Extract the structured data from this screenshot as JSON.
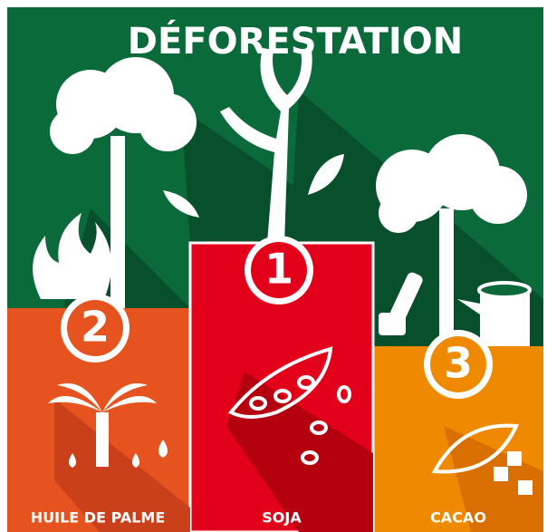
{
  "title": "DÉFORESTATION",
  "podium": [
    {
      "rank": 2,
      "label": "HUILE DE PALME"
    },
    {
      "rank": 1,
      "label": "SOJA"
    },
    {
      "rank": 3,
      "label": "CACAO"
    }
  ]
}
